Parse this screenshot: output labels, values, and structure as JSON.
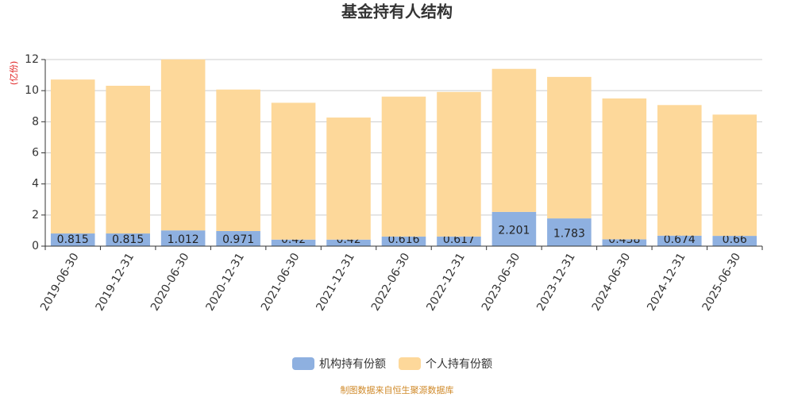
{
  "chart_data": {
    "type": "stacked_bar",
    "title": "基金持有人结构",
    "y_label": "(亿份)",
    "source": "制图数据来自恒生聚源数据库",
    "categories": [
      "2019-06-30",
      "2019-12-31",
      "2020-06-30",
      "2020-12-31",
      "2021-06-30",
      "2021-12-31",
      "2022-06-30",
      "2022-12-31",
      "2023-06-30",
      "2023-12-31",
      "2024-06-30",
      "2024-12-31",
      "2025-06-30"
    ],
    "series": [
      {
        "name": "机构持有份额",
        "color": "#8eb0e0",
        "values": [
          0.815,
          0.815,
          1.012,
          0.971,
          0.42,
          0.42,
          0.616,
          0.617,
          2.201,
          1.783,
          0.438,
          0.674,
          0.66
        ]
      },
      {
        "name": "个人持有份额",
        "color": "#fdd89a",
        "values": [
          9.9,
          9.5,
          11.0,
          9.1,
          8.8,
          7.85,
          9.0,
          9.3,
          9.2,
          9.1,
          9.06,
          8.4,
          7.8
        ]
      }
    ],
    "ylim": [
      0,
      12
    ],
    "yticks": [
      0,
      2,
      4,
      6,
      8,
      10,
      12
    ],
    "grid": true
  }
}
